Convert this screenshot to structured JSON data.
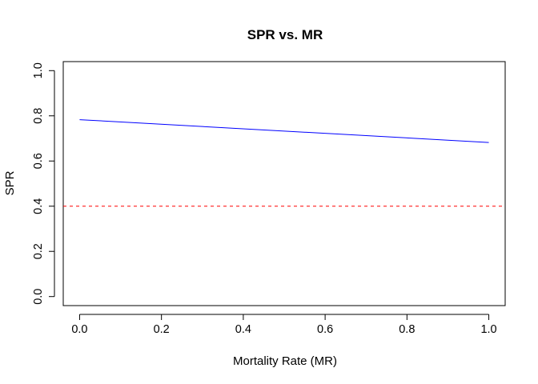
{
  "chart_data": {
    "type": "line",
    "title": "SPR vs. MR",
    "xlabel": "Mortality Rate (MR)",
    "ylabel": "SPR",
    "xlim": [
      -0.04,
      1.04
    ],
    "ylim": [
      -0.04,
      1.04
    ],
    "x_ticks": [
      0.0,
      0.2,
      0.4,
      0.6,
      0.8,
      1.0
    ],
    "x_tick_labels": [
      "0.0",
      "0.2",
      "0.4",
      "0.6",
      "0.8",
      "1.0"
    ],
    "y_ticks": [
      0.0,
      0.2,
      0.4,
      0.6,
      0.8,
      1.0
    ],
    "y_tick_labels": [
      "0.0",
      "0.2",
      "0.4",
      "0.6",
      "0.8",
      "1.0"
    ],
    "grid": false,
    "series": [
      {
        "color": "#0000ff",
        "style": "solid",
        "x": [
          0.0,
          1.0
        ],
        "y": [
          0.783,
          0.682
        ]
      }
    ],
    "reference_lines": [
      {
        "orientation": "horizontal",
        "y": 0.4,
        "color": "#ff0000",
        "style": "dashed"
      }
    ]
  }
}
